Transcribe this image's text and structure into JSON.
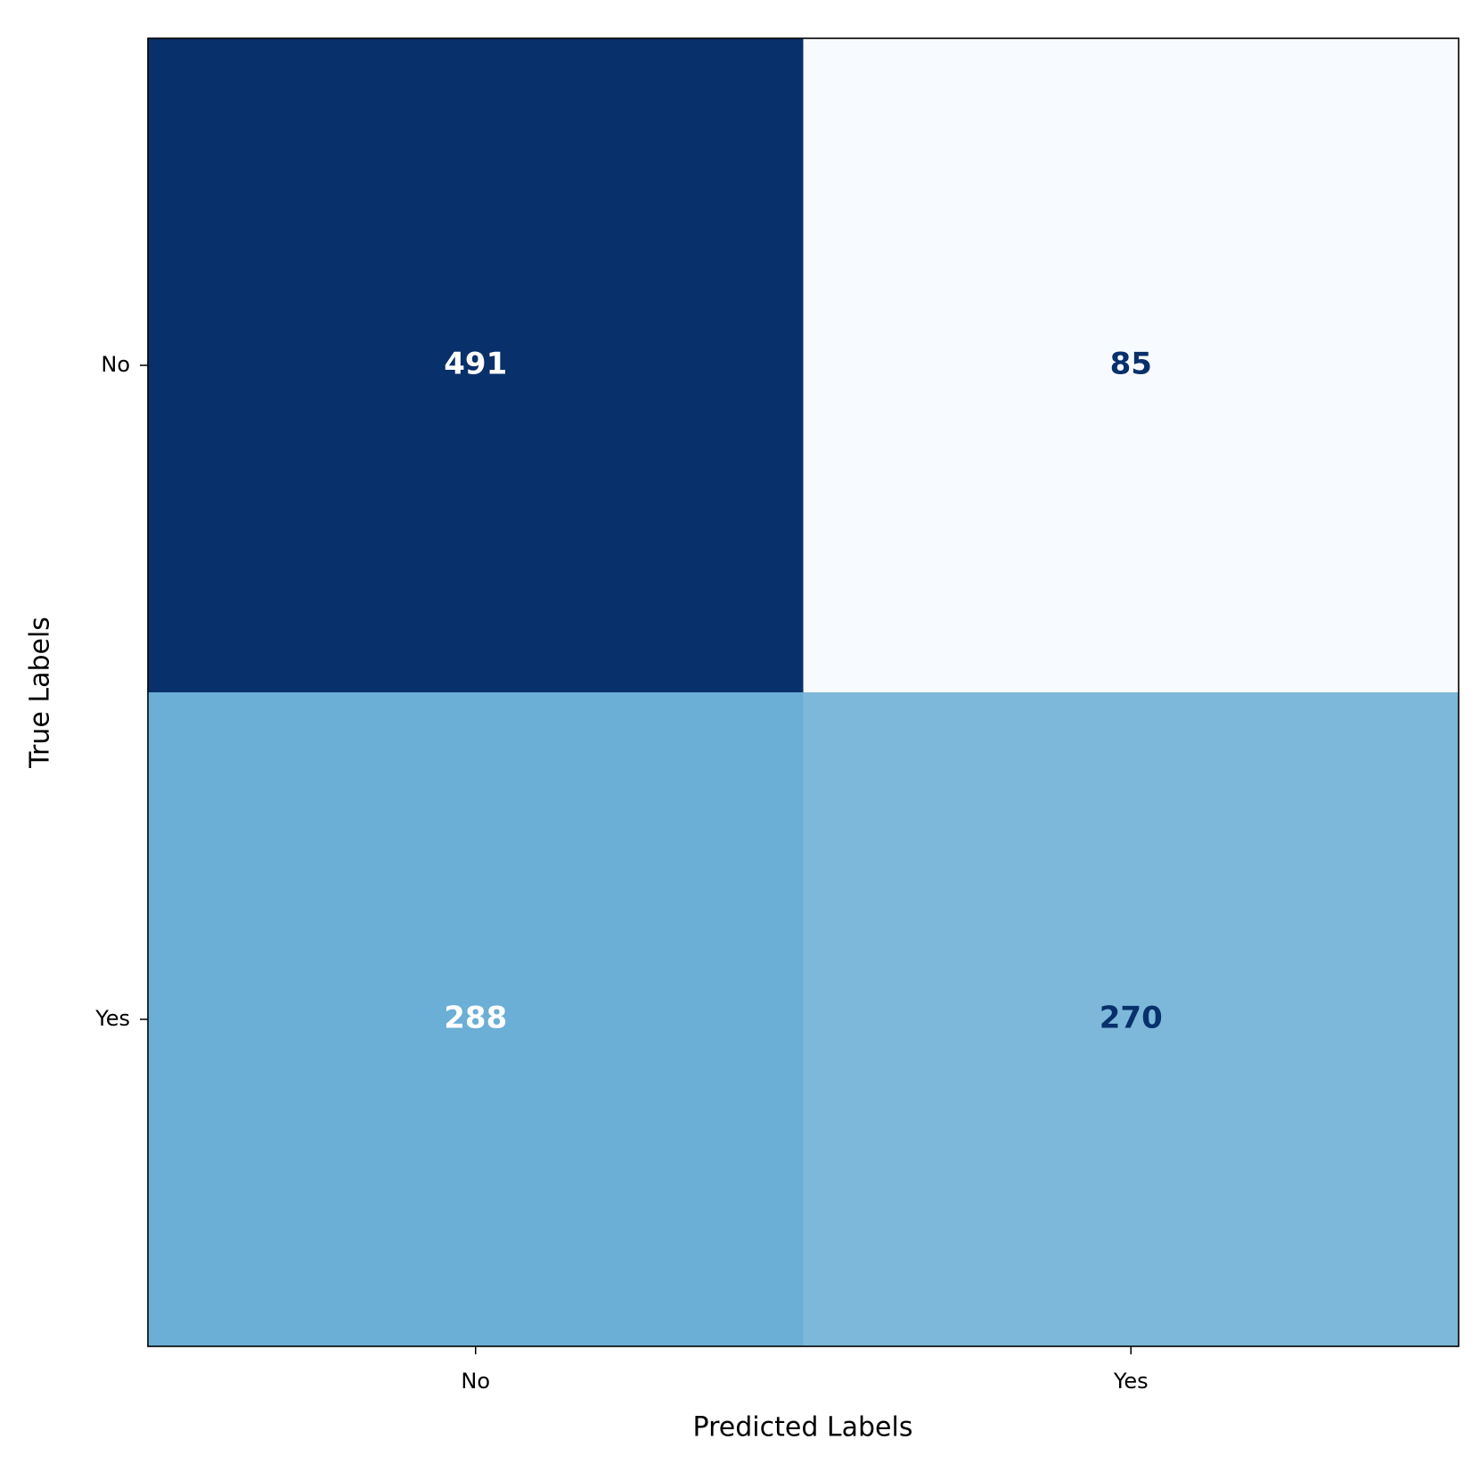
{
  "chart_data": {
    "type": "heatmap",
    "x_label": "Predicted Labels",
    "y_label": "True Labels",
    "x_categories": [
      "No",
      "Yes"
    ],
    "y_categories": [
      "No",
      "Yes"
    ],
    "values": [
      [
        491,
        85
      ],
      [
        288,
        270
      ]
    ],
    "colormap": "Blues"
  }
}
